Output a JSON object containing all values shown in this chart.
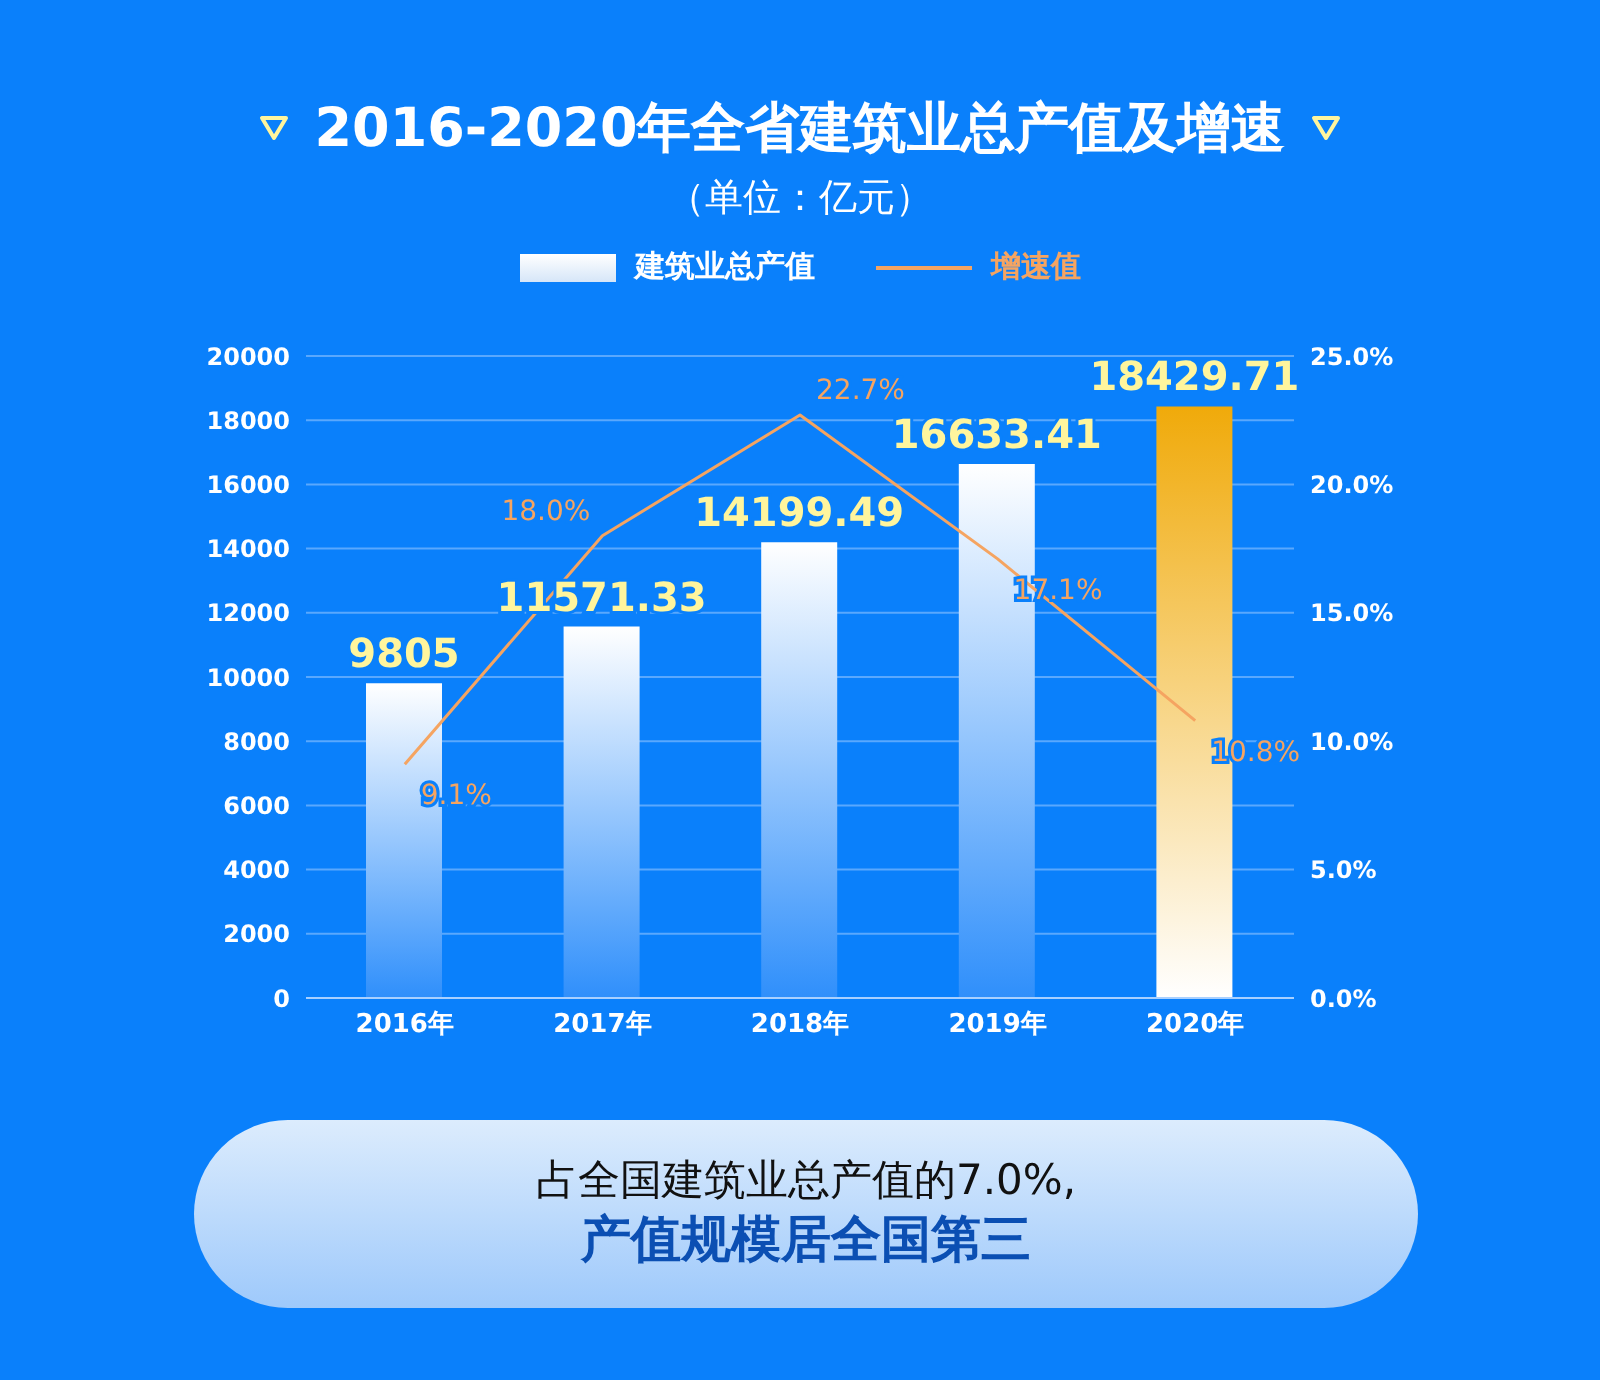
{
  "chart_data": {
    "type": "bar",
    "title": "2016-2020年全省建筑业总产值及增速",
    "subtitle": "（单位：亿元）",
    "categories": [
      "2016年",
      "2017年",
      "2018年",
      "2019年",
      "2020年"
    ],
    "series": [
      {
        "name": "建筑业总产值",
        "colors": [
          "#ffffff",
          "#ffffff",
          "#ffffff",
          "#ffffff",
          "#f0aa0a"
        ],
        "values": [
          9805,
          11571.33,
          14199.49,
          16633.41,
          18429.71
        ],
        "value_labels": [
          "9805",
          "11571.33",
          "14199.49",
          "16633.41",
          "18429.71"
        ]
      },
      {
        "name": "增速值",
        "type": "line",
        "axis": "y2",
        "color": "#f5a461",
        "values": [
          9.1,
          18.0,
          22.7,
          17.1,
          10.8
        ],
        "value_labels": [
          "9.1%",
          "18.0%",
          "22.7%",
          "17.1%",
          "10.8%"
        ]
      }
    ],
    "ylim": [
      0,
      20000
    ],
    "yticks": [
      0,
      2000,
      4000,
      6000,
      8000,
      10000,
      12000,
      14000,
      16000,
      18000,
      20000
    ],
    "y2lim": [
      0,
      25
    ],
    "y2ticks": [
      {
        "value": 0,
        "label": "0.0%"
      },
      {
        "value": 5,
        "label": "5.0%"
      },
      {
        "value": 10,
        "label": "10.0%"
      },
      {
        "value": 15,
        "label": "15.0%"
      },
      {
        "value": 20,
        "label": "20.0%"
      },
      {
        "value": 25,
        "label": "25.0%"
      }
    ],
    "grid": "y",
    "legend": "top",
    "marker": "none",
    "line_style": "solid",
    "annotations": [
      "占全国建筑业总产值的7.0%,",
      "产值规模居全国第三"
    ]
  }
}
